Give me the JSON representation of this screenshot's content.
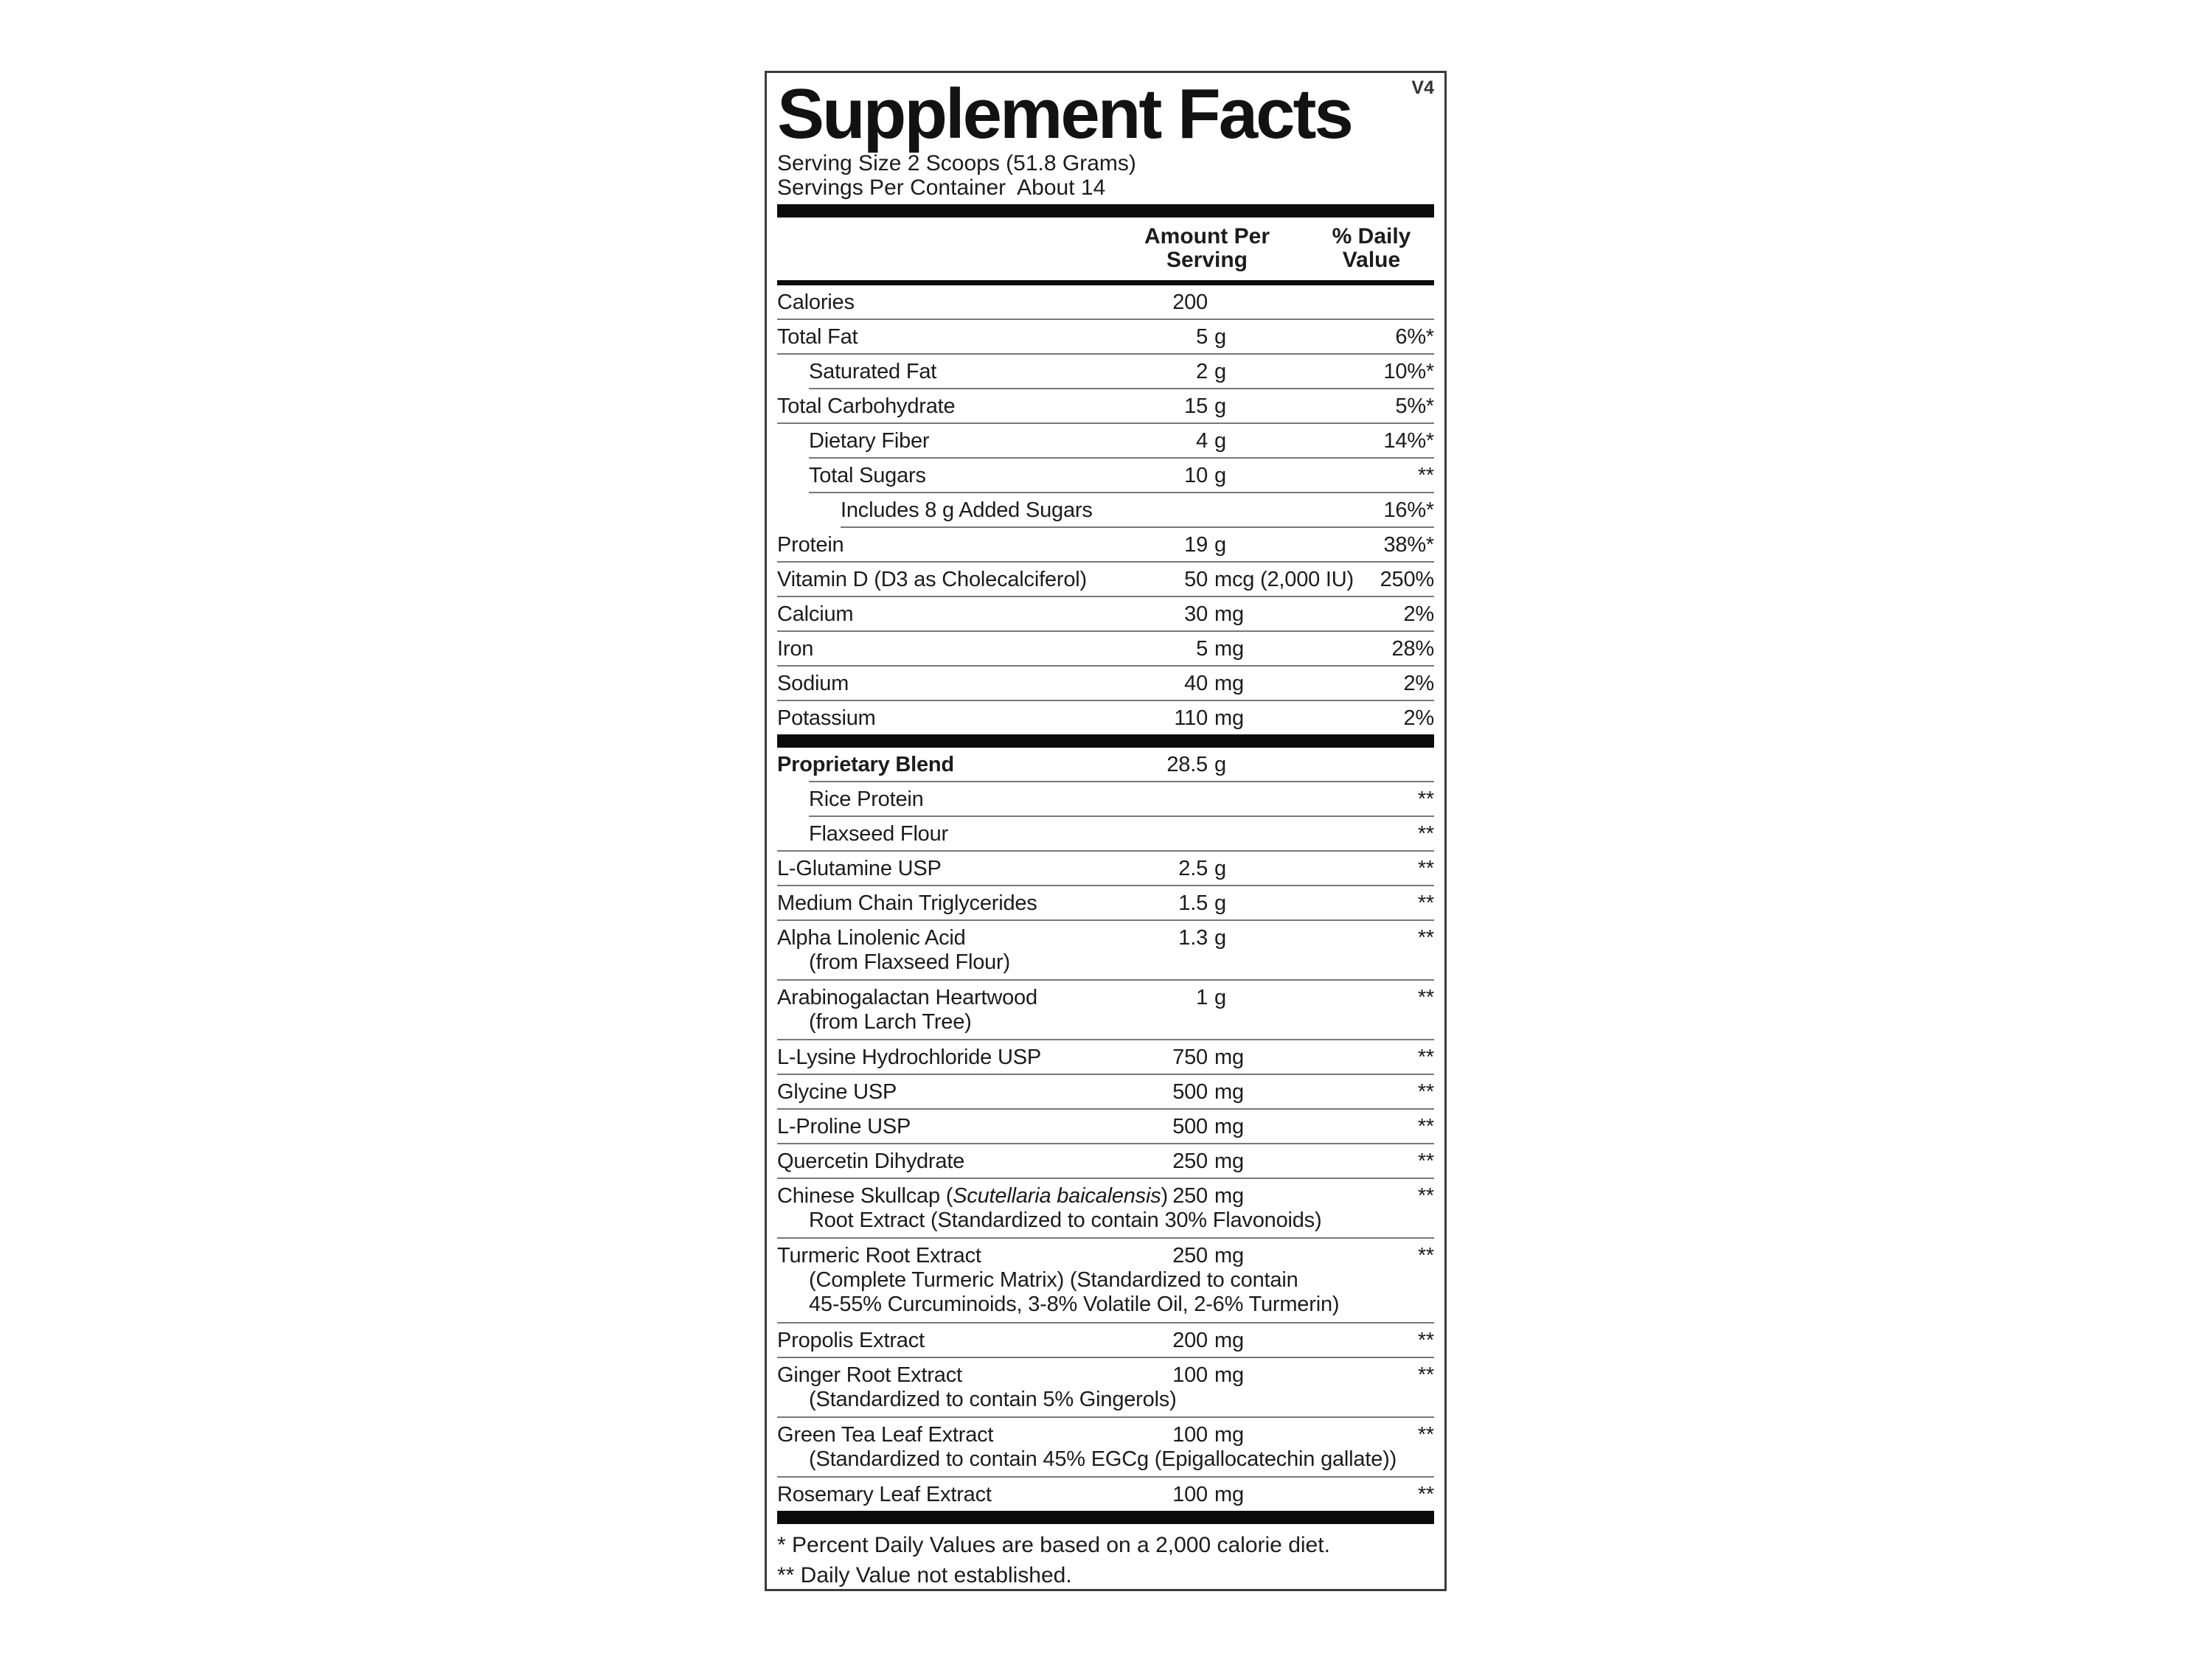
{
  "panel": {
    "title": "Supplement Facts",
    "version": "V4",
    "serving_size": "Serving Size 2 Scoops (51.8 Grams)",
    "servings_per_container": "Servings Per Container  About 14",
    "col_amount_line1": "Amount Per",
    "col_amount_line2": "Serving",
    "col_dv_line1": "% Daily",
    "col_dv_line2": "Value",
    "footnote1": "* Percent Daily Values are based on a 2,000 calorie diet.",
    "footnote2": "** Daily Value not established."
  },
  "colors": {
    "bar": "#0b0b0b",
    "hairline": "#787878",
    "border": "#3c3c3c",
    "text": "#1c1c1c"
  },
  "rows": [
    {
      "name": "Calories",
      "num": "200",
      "unit": "",
      "dv": ""
    },
    {
      "name": "Total Fat",
      "num": "5",
      "unit": "g",
      "dv": "6%*"
    },
    {
      "name": "Saturated Fat",
      "num": "2",
      "unit": "g",
      "dv": "10%*"
    },
    {
      "name": "Total Carbohydrate",
      "num": "15",
      "unit": "g",
      "dv": "5%*"
    },
    {
      "name": "Dietary Fiber",
      "num": "4",
      "unit": "g",
      "dv": "14%*"
    },
    {
      "name": "Total Sugars",
      "num": "10",
      "unit": "g",
      "dv": "**"
    },
    {
      "name": "Includes 8 g Added Sugars",
      "num": "",
      "unit": "",
      "dv": "16%*"
    },
    {
      "name": "Protein",
      "num": "19",
      "unit": "g",
      "dv": "38%*"
    },
    {
      "name": "Vitamin D (D3 as Cholecalciferol)",
      "num": "50",
      "unit": "mcg (2,000 IU)",
      "dv": "250%"
    },
    {
      "name": "Calcium",
      "num": "30",
      "unit": "mg",
      "dv": "2%"
    },
    {
      "name": "Iron",
      "num": "5",
      "unit": "mg",
      "dv": "28%"
    },
    {
      "name": "Sodium",
      "num": "40",
      "unit": "mg",
      "dv": "2%"
    },
    {
      "name": "Potassium",
      "num": "110",
      "unit": "mg",
      "dv": "2%"
    },
    {
      "name": "Proprietary Blend",
      "num": "28.5",
      "unit": "g",
      "dv": ""
    },
    {
      "name": "Rice Protein",
      "num": "",
      "unit": "",
      "dv": "**"
    },
    {
      "name": "Flaxseed Flour",
      "num": "",
      "unit": "",
      "dv": "**"
    },
    {
      "name": "L-Glutamine USP",
      "num": "2.5",
      "unit": "g",
      "dv": "**"
    },
    {
      "name": "Medium Chain Triglycerides",
      "num": "1.5",
      "unit": "g",
      "dv": "**"
    },
    {
      "name": "Alpha Linolenic Acid",
      "sub": "(from Flaxseed Flour)",
      "num": "1.3",
      "unit": "g",
      "dv": "**"
    },
    {
      "name": "Arabinogalactan Heartwood",
      "sub": "(from Larch Tree)",
      "num": "1",
      "unit": "g",
      "dv": "**"
    },
    {
      "name": "L-Lysine Hydrochloride USP",
      "num": "750",
      "unit": "mg",
      "dv": "**"
    },
    {
      "name": "Glycine USP",
      "num": "500",
      "unit": "mg",
      "dv": "**"
    },
    {
      "name": "L-Proline USP",
      "num": "500",
      "unit": "mg",
      "dv": "**"
    },
    {
      "name": "Quercetin Dihydrate",
      "num": "250",
      "unit": "mg",
      "dv": "**"
    },
    {
      "name_pre": "Chinese Skullcap (",
      "name_it": "Scutellaria baicalensis",
      "name_post": ")",
      "sub": "Root Extract (Standardized to contain 30% Flavonoids)",
      "num": "250",
      "unit": "mg",
      "dv": "**"
    },
    {
      "name": "Turmeric Root Extract",
      "sub": "(Complete Turmeric Matrix) (Standardized to contain",
      "sub2": "45-55% Curcuminoids, 3-8% Volatile Oil, 2-6% Turmerin)",
      "num": "250",
      "unit": "mg",
      "dv": "**"
    },
    {
      "name": "Propolis Extract",
      "num": "200",
      "unit": "mg",
      "dv": "**"
    },
    {
      "name": "Ginger Root Extract",
      "sub": "(Standardized to contain 5% Gingerols)",
      "num": "100",
      "unit": "mg",
      "dv": "**"
    },
    {
      "name": "Green Tea Leaf Extract",
      "sub": "(Standardized to contain 45% EGCg (Epigallocatechin gallate))",
      "num": "100",
      "unit": "mg",
      "dv": "**"
    },
    {
      "name": "Rosemary Leaf Extract",
      "num": "100",
      "unit": "mg",
      "dv": "**"
    }
  ]
}
